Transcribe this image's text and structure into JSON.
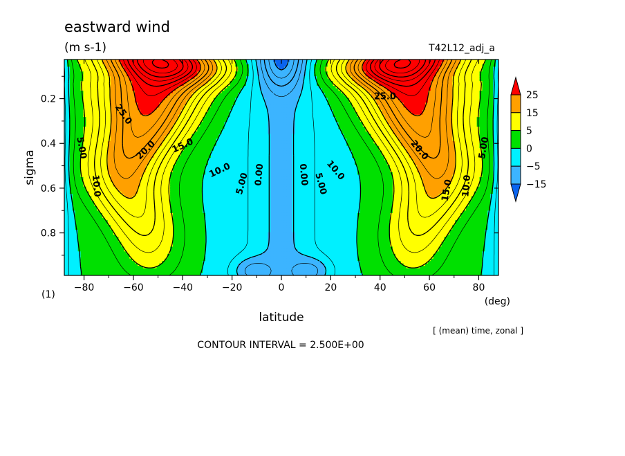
{
  "chart_data": {
    "type": "heatmap",
    "title": "eastward wind",
    "units": "(m s-1)",
    "run_name": "T42L12_adj_a",
    "xlabel": "latitude",
    "xunit": "(deg)",
    "ylabel": "sigma",
    "panel_label": "(1)",
    "averaging": "[ (mean) time, zonal ]",
    "contour_note": "CONTOUR INTERVAL = 2.500E+00",
    "xlim": [
      -88,
      88
    ],
    "ylim": [
      0.025,
      0.99
    ],
    "y_inverted": true,
    "x_ticks": [
      -80,
      -60,
      -40,
      -20,
      0,
      20,
      40,
      60,
      80
    ],
    "x_tick_labels": [
      "−80",
      "−60",
      "−40",
      "−20",
      "0",
      "20",
      "40",
      "60",
      "80"
    ],
    "y_ticks": [
      0.2,
      0.4,
      0.6,
      0.8
    ],
    "y_tick_labels": [
      "0.2",
      "0.4",
      "0.6",
      "0.8"
    ],
    "contour_interval": 2.5,
    "fill_levels": [
      -15,
      -5,
      0,
      5,
      15,
      25
    ],
    "legend_labels": [
      "25",
      "15",
      "5",
      "0",
      "−5",
      "−15"
    ],
    "legend_placement": "right",
    "colors": {
      "below_m15": "#0a64f0",
      "m15_m5": "#3cb4ff",
      "m5_0": "#00f0ff",
      "0_5": "#00e000",
      "5_15": "#ffff00",
      "15_25": "#ffa000",
      "above_25": "#ff0000"
    },
    "contour_labels": [
      {
        "text": "25.0",
        "lat": -64,
        "sigma": 0.27,
        "angle": 55
      },
      {
        "text": "20.0",
        "lat": -55,
        "sigma": 0.43,
        "angle": -45
      },
      {
        "text": "15.0",
        "lat": -40,
        "sigma": 0.41,
        "angle": -25
      },
      {
        "text": "10.0",
        "lat": -25,
        "sigma": 0.52,
        "angle": -25
      },
      {
        "text": "5.00",
        "lat": -16,
        "sigma": 0.58,
        "angle": -75
      },
      {
        "text": "0.00",
        "lat": -9,
        "sigma": 0.54,
        "angle": -85
      },
      {
        "text": "5.00",
        "lat": -81,
        "sigma": 0.42,
        "angle": 80
      },
      {
        "text": "10.0",
        "lat": -75,
        "sigma": 0.59,
        "angle": 85
      },
      {
        "text": "25.0",
        "lat": 42,
        "sigma": 0.19,
        "angle": 0
      },
      {
        "text": "20.0",
        "lat": 56,
        "sigma": 0.43,
        "angle": 50
      },
      {
        "text": "15.0",
        "lat": 67,
        "sigma": 0.61,
        "angle": -80
      },
      {
        "text": "10.0",
        "lat": 75,
        "sigma": 0.59,
        "angle": -85
      },
      {
        "text": "5.00",
        "lat": 82,
        "sigma": 0.42,
        "angle": -80
      },
      {
        "text": "10.0",
        "lat": 22,
        "sigma": 0.52,
        "angle": 50
      },
      {
        "text": "5.00",
        "lat": 16,
        "sigma": 0.58,
        "angle": 75
      },
      {
        "text": "0.00",
        "lat": 9,
        "sigma": 0.54,
        "angle": 85
      }
    ]
  }
}
